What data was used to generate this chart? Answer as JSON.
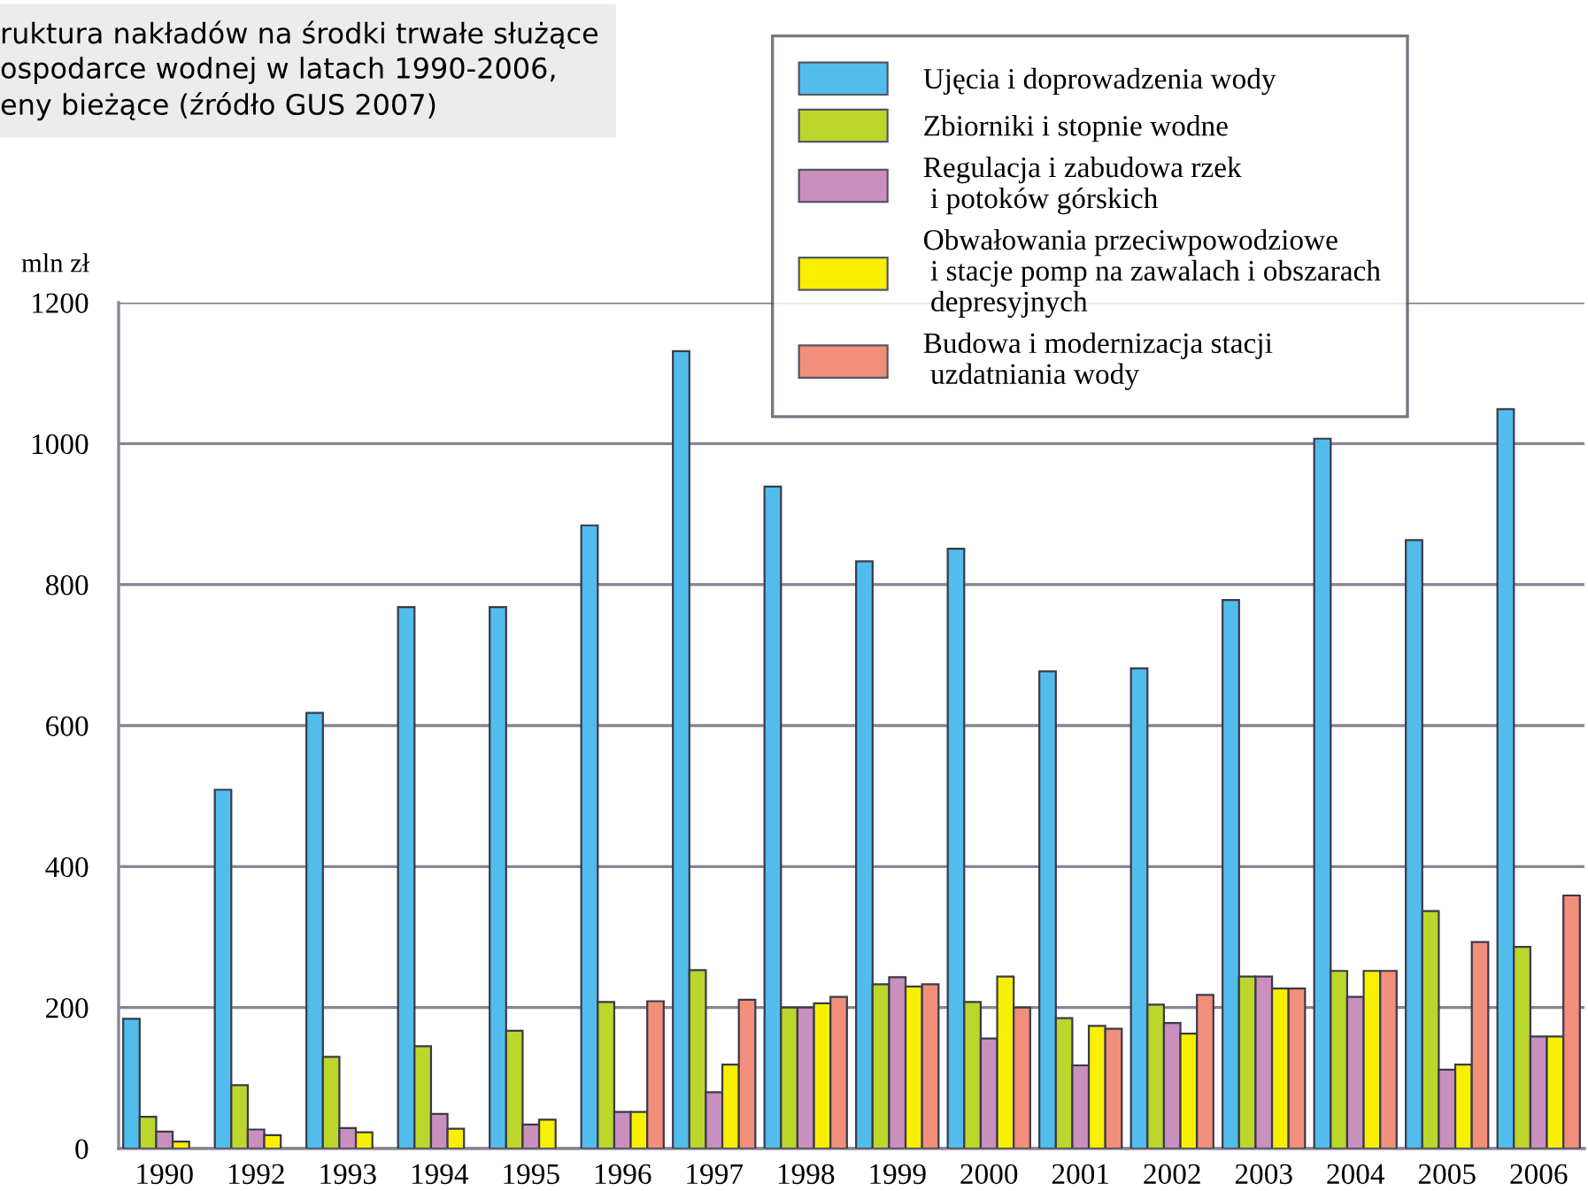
{
  "chart_data": {
    "type": "bar",
    "title": "ruktura nakładów na środki trwałe służące\nospodarce wodnej w latach 1990-2006,\neny bieżące (źródło GUS 2007)",
    "ylabel": "mln zł",
    "categories": [
      "1990",
      "1992",
      "1993",
      "1994",
      "1995",
      "1996",
      "1997",
      "1998",
      "1999",
      "2000",
      "2001",
      "2002",
      "2003",
      "2004",
      "2005",
      "2006"
    ],
    "series": [
      {
        "name": "Ujęcia i doprowadzenia wody",
        "color": "#52bdec",
        "values": [
          184,
          509,
          618,
          768,
          768,
          884,
          1131,
          939,
          833,
          851,
          677,
          681,
          778,
          1007,
          863,
          1049
        ]
      },
      {
        "name": "Zbiorniki i stopnie wodne",
        "color": "#bdd62b",
        "values": [
          45,
          90,
          130,
          145,
          167,
          208,
          253,
          200,
          233,
          208,
          185,
          204,
          244,
          252,
          337,
          286
        ]
      },
      {
        "name": "Regulacja i zabudowa rzek\n i potoków górskich",
        "color": "#c98fbd",
        "values": [
          24,
          27,
          29,
          49,
          34,
          52,
          80,
          200,
          243,
          156,
          118,
          178,
          244,
          215,
          112,
          159
        ]
      },
      {
        "name": "Obwałowania przeciwpowodziowe\n i stacje pomp na zawalach i obszarach\n depresyjnych",
        "color": "#f8f000",
        "values": [
          10,
          19,
          23,
          28,
          41,
          52,
          119,
          206,
          230,
          244,
          174,
          163,
          227,
          252,
          119,
          159
        ]
      },
      {
        "name": "Budowa i modernizacja stacji\n uzdatniania wody",
        "color": "#f28f7a",
        "values": [
          null,
          null,
          null,
          null,
          null,
          209,
          211,
          215,
          233,
          200,
          170,
          218,
          227,
          252,
          293,
          359
        ]
      }
    ],
    "ylim": [
      0,
      1200
    ],
    "yticks": [
      0,
      200,
      400,
      600,
      800,
      1000,
      1200
    ],
    "grid": "y",
    "legend": "top right"
  }
}
